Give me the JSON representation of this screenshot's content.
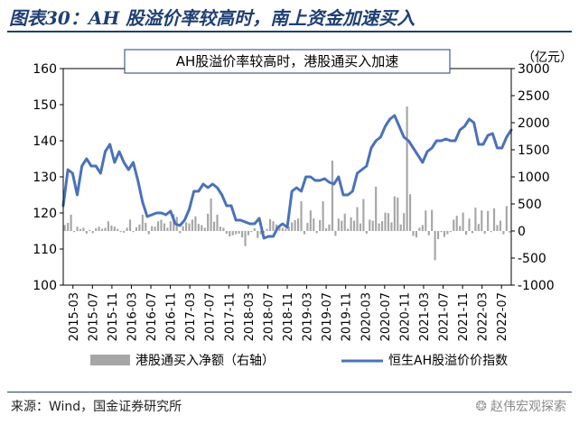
{
  "header": {
    "title": "图表30：AH 股溢价率较高时，南上资金加速买入"
  },
  "footer": {
    "source": "来源：Wind，国金证券研究所",
    "watermark": "赵伟宏观探索",
    "watermark_icon": "wechat-icon"
  },
  "chart_data": {
    "type": "line",
    "title": "AH股溢价率较高时，港股通买入加速",
    "left_axis": {
      "ylim": [
        100,
        160
      ],
      "ticks": [
        100,
        110,
        120,
        130,
        140,
        150,
        160
      ]
    },
    "right_axis": {
      "unit": "（亿元）",
      "ylim": [
        -1000,
        3000
      ],
      "ticks": [
        -1000,
        -500,
        0,
        500,
        1000,
        1500,
        2000,
        2500,
        3000
      ]
    },
    "x_tick_labels": [
      "2015-03",
      "2015-07",
      "2015-11",
      "2016-03",
      "2016-07",
      "2016-11",
      "2017-03",
      "2017-07",
      "2017-11",
      "2018-03",
      "2018-07",
      "2018-11",
      "2019-03",
      "2019-07",
      "2019-11",
      "2020-03",
      "2020-07",
      "2020-11",
      "2021-03",
      "2021-07",
      "2021-11",
      "2022-03",
      "2022-07"
    ],
    "grid": false,
    "legend_position": "bottom",
    "colors": {
      "line": "#4a72b8",
      "bars": "#a6a6a6",
      "title_border": "#1f3f74"
    },
    "series": [
      {
        "name": "港股通买入净额（右轴）",
        "kind": "bar",
        "axis": "right",
        "values": [
          110,
          150,
          300,
          -20,
          80,
          40,
          60,
          -50,
          20,
          -40,
          50,
          80,
          40,
          60,
          180,
          100,
          80,
          40,
          -20,
          -30,
          60,
          210,
          -20,
          70,
          120,
          300,
          150,
          -60,
          90,
          80,
          180,
          210,
          140,
          60,
          180,
          310,
          260,
          -40,
          90,
          160,
          140,
          210,
          270,
          130,
          110,
          60,
          320,
          600,
          170,
          300,
          80,
          60,
          -50,
          -100,
          -80,
          -60,
          -50,
          -120,
          -280,
          -80,
          -20,
          50,
          -130,
          -60,
          -30,
          40,
          220,
          180,
          120,
          100,
          60,
          40,
          80,
          160,
          200,
          230,
          550,
          -60,
          150,
          380,
          230,
          -40,
          200,
          550,
          50,
          120,
          1300,
          -90,
          230,
          190,
          320,
          40,
          250,
          190,
          440,
          140,
          590,
          -50,
          210,
          190,
          820,
          140,
          180,
          340,
          330,
          160,
          640,
          620,
          120,
          330,
          2300,
          680,
          -90,
          -120,
          60,
          110,
          380,
          -80,
          390,
          -540,
          -150,
          -20,
          -110,
          -60,
          -20,
          210,
          280,
          90,
          340,
          -70,
          230,
          -40,
          430,
          130,
          380,
          -50,
          370,
          -20,
          420,
          110,
          190,
          -60,
          460,
          -30
        ]
      },
      {
        "name": "恒生AH股溢价价指数",
        "kind": "line",
        "axis": "left",
        "values": [
          122,
          132,
          131,
          125,
          133,
          135,
          133,
          133,
          131,
          137,
          139,
          134,
          137,
          134,
          132,
          134,
          129,
          123,
          119,
          119.5,
          120,
          120,
          119.5,
          120.5,
          117,
          116.5,
          118,
          121,
          126,
          126,
          128,
          127,
          128,
          127,
          125,
          122,
          122,
          118,
          118,
          117.5,
          117,
          117,
          118.5,
          113,
          113.5,
          113.5,
          116,
          117,
          116,
          126,
          127,
          126,
          130,
          130,
          129,
          129,
          129.5,
          128.5,
          128,
          130,
          125,
          125,
          126,
          131,
          132,
          133,
          138,
          140,
          141,
          144,
          146,
          147,
          144,
          141,
          140,
          138,
          136,
          134,
          137,
          138,
          140,
          140,
          140.5,
          140,
          140,
          143,
          144,
          146,
          145,
          139,
          139,
          141.5,
          142,
          138,
          138,
          141,
          143
        ]
      }
    ]
  }
}
